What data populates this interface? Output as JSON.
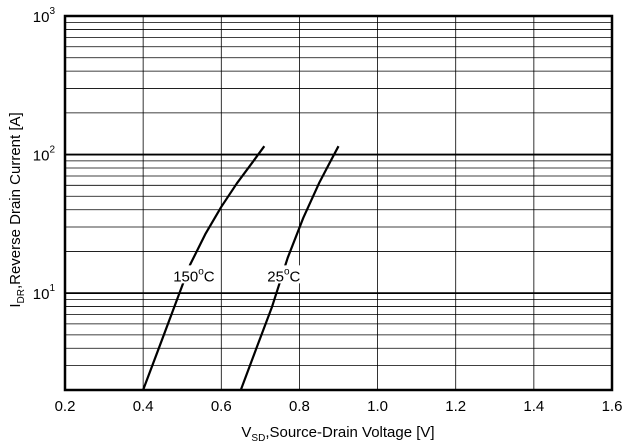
{
  "chart_data": {
    "type": "line",
    "title": "",
    "xlabel_parts": {
      "v": "V",
      "sub": "SD",
      "rest": ",Source-Drain Voltage  [V]"
    },
    "ylabel_parts": {
      "i": "I",
      "sub": "DR",
      "rest": ",Reverse Drain Current  [A]"
    },
    "x_scale": "linear",
    "y_scale": "log",
    "xlim": [
      0.2,
      1.6
    ],
    "ylim": [
      2,
      1000
    ],
    "grid": true,
    "x_ticks": [
      0.2,
      0.4,
      0.6,
      0.8,
      1.0,
      1.2,
      1.4,
      1.6
    ],
    "x_tick_labels": [
      "0.2",
      "0.4",
      "0.6",
      "0.8",
      "1.0",
      "1.2",
      "1.4",
      "1.6"
    ],
    "y_major_ticks": [
      10,
      100,
      1000
    ],
    "y_tick_labels": [
      {
        "value": 10,
        "base": "10",
        "exp": "1"
      },
      {
        "value": 100,
        "base": "10",
        "exp": "2"
      },
      {
        "value": 1000,
        "base": "10",
        "exp": "3"
      }
    ],
    "series": [
      {
        "name": "150°C",
        "label_text": "150",
        "label_sup": "o",
        "label_unit": "C",
        "points": [
          [
            0.4,
            2
          ],
          [
            0.44,
            4
          ],
          [
            0.48,
            8
          ],
          [
            0.52,
            16
          ],
          [
            0.56,
            27
          ],
          [
            0.6,
            42
          ],
          [
            0.64,
            62
          ],
          [
            0.68,
            88
          ],
          [
            0.71,
            115
          ]
        ]
      },
      {
        "name": "25°C",
        "label_text": "25",
        "label_sup": "o",
        "label_unit": "C",
        "points": [
          [
            0.65,
            2
          ],
          [
            0.69,
            4
          ],
          [
            0.73,
            8
          ],
          [
            0.77,
            18
          ],
          [
            0.81,
            35
          ],
          [
            0.85,
            62
          ],
          [
            0.88,
            90
          ],
          [
            0.9,
            115
          ]
        ]
      }
    ],
    "series_label_anchor": [
      {
        "x": 0.53,
        "y": 13
      },
      {
        "x": 0.76,
        "y": 13
      }
    ]
  }
}
